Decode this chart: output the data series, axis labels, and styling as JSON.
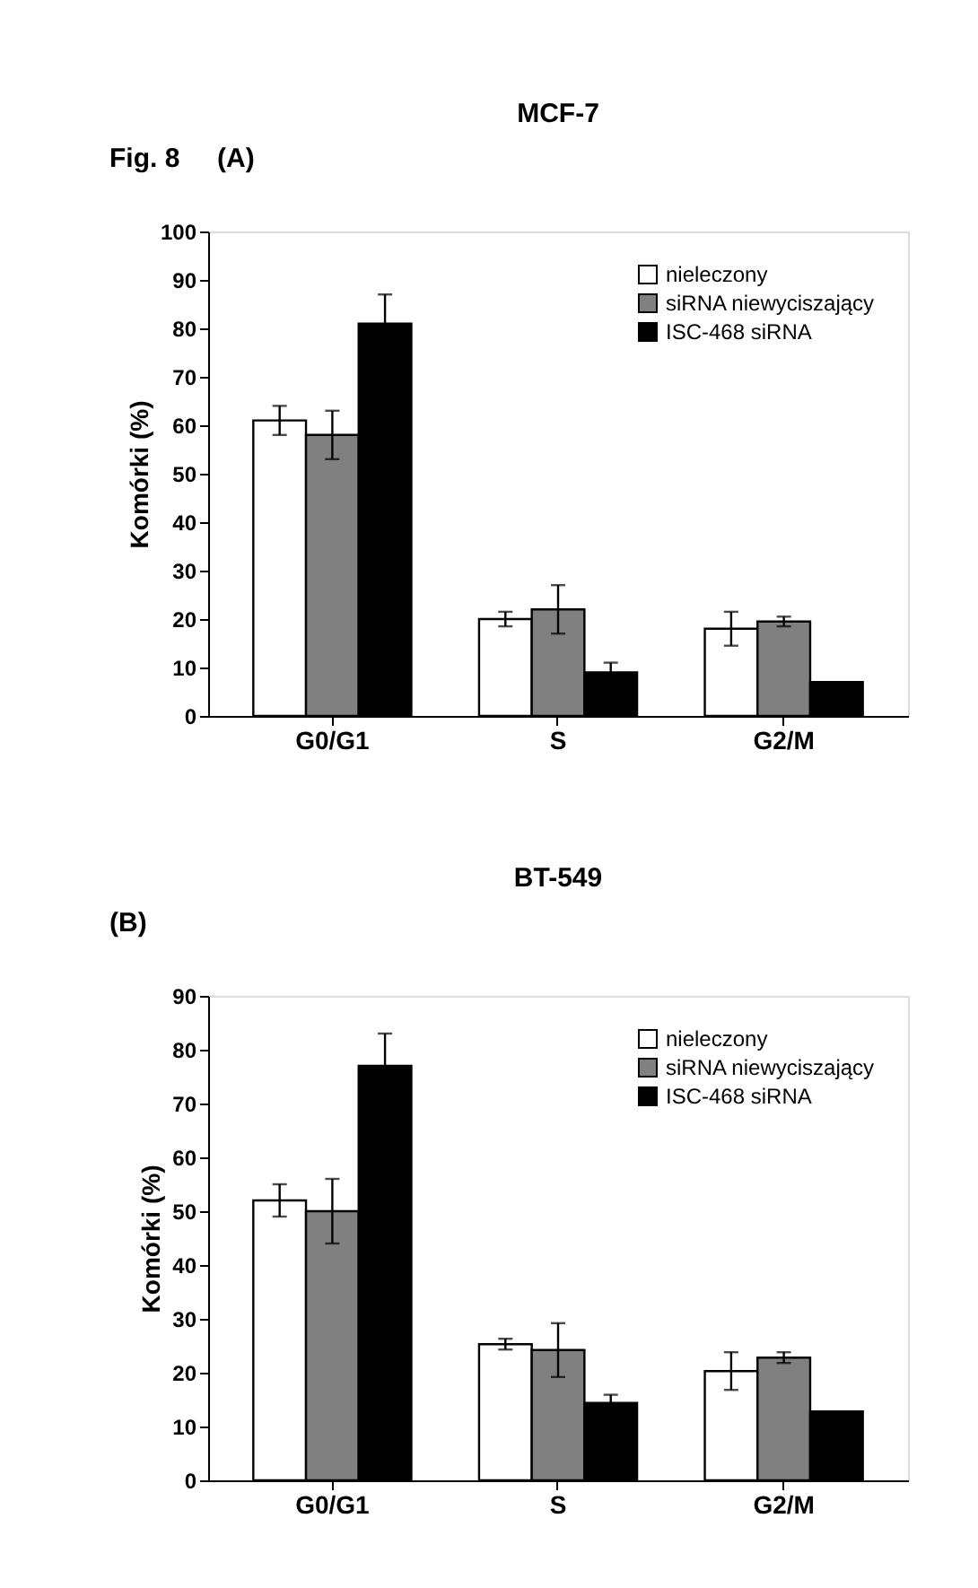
{
  "chart_data": [
    {
      "type": "bar",
      "title": "MCF-7",
      "ylabel": "Komórki (%)",
      "annotations": [
        "Fig. 8",
        "(A)"
      ],
      "categories": [
        "G0/G1",
        "S",
        "G2/M"
      ],
      "ylim": [
        0,
        100
      ],
      "yticks": [
        0,
        10,
        20,
        30,
        40,
        50,
        60,
        70,
        80,
        90,
        100
      ],
      "grid": false,
      "legend": "top right",
      "series": [
        {
          "name": "nieleczony",
          "color": "#ffffff",
          "values": [
            61,
            20,
            18
          ],
          "errors": [
            3,
            1.5,
            3.5
          ]
        },
        {
          "name": "siRNA niewyciszający",
          "color": "#808080",
          "values": [
            58,
            22,
            19.5
          ],
          "errors": [
            5,
            5,
            1
          ]
        },
        {
          "name": "ISC-468 siRNA",
          "color": "#000000",
          "values": [
            81,
            9,
            7
          ],
          "errors": [
            6,
            2,
            null
          ]
        }
      ]
    },
    {
      "type": "bar",
      "title": "BT-549",
      "ylabel": "Komórki (%)",
      "annotations": [
        "(B)"
      ],
      "categories": [
        "G0/G1",
        "S",
        "G2/M"
      ],
      "ylim": [
        0,
        90
      ],
      "yticks": [
        0,
        10,
        20,
        30,
        40,
        50,
        60,
        70,
        80,
        90
      ],
      "grid": false,
      "legend": "top right",
      "series": [
        {
          "name": "nieleczony",
          "color": "#ffffff",
          "values": [
            52,
            25.3,
            20.3
          ],
          "errors": [
            3,
            1,
            3.5
          ]
        },
        {
          "name": "siRNA niewyciszający",
          "color": "#808080",
          "values": [
            50,
            24.2,
            22.8
          ],
          "errors": [
            6,
            5,
            1
          ]
        },
        {
          "name": "ISC-468 siRNA",
          "color": "#000000",
          "values": [
            77,
            14.4,
            12.8
          ],
          "errors": [
            6,
            1.5,
            null
          ]
        }
      ]
    }
  ]
}
